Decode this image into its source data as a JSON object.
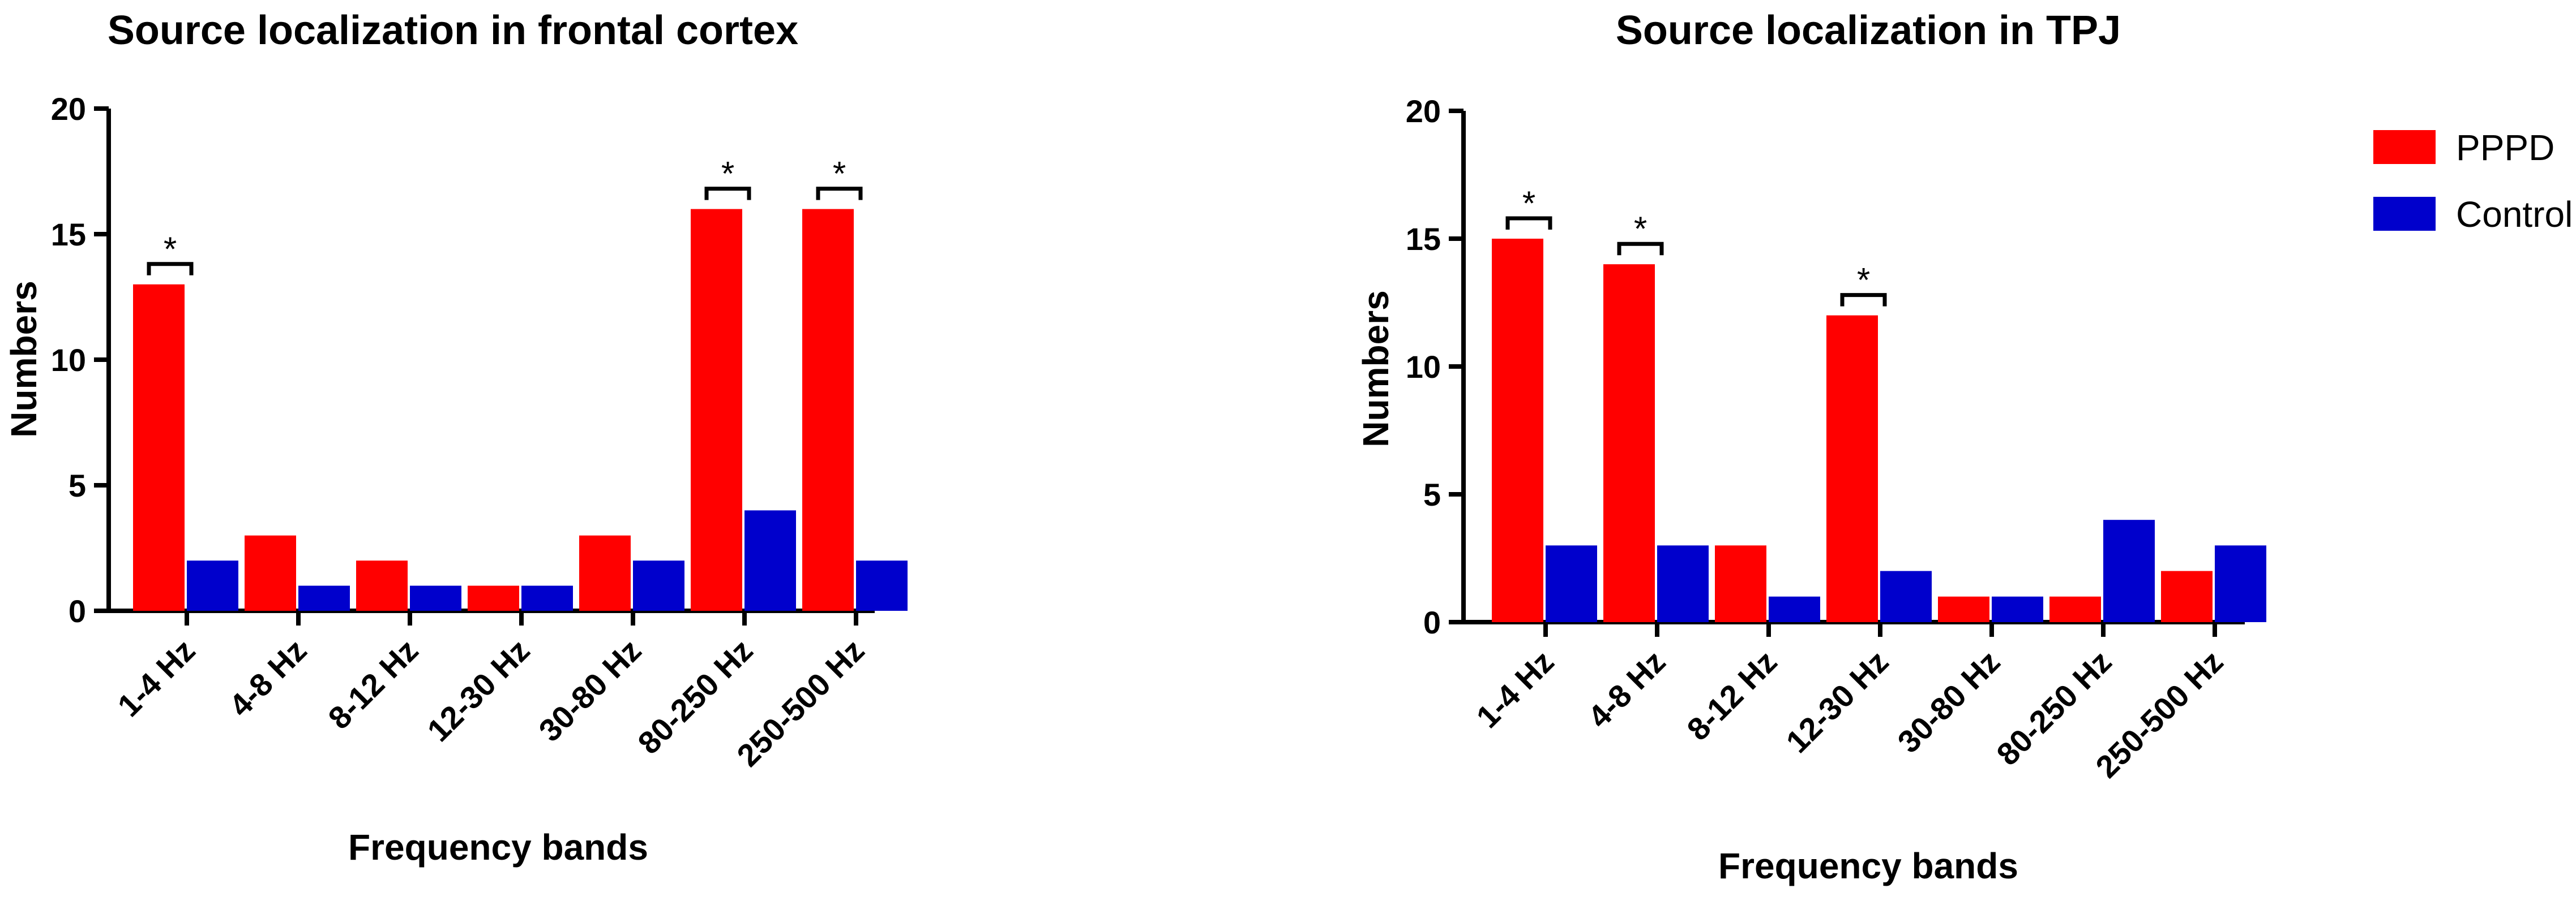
{
  "legend": {
    "items": [
      {
        "label": "PPPD",
        "color": "#ff0000"
      },
      {
        "label": "Control",
        "color": "#0000cc"
      }
    ]
  },
  "chart_data": [
    {
      "type": "bar",
      "title": "Source localization in frontal cortex",
      "xlabel": "Frequency bands",
      "ylabel": "Numbers",
      "ylim": [
        0,
        20
      ],
      "yticks": [
        0,
        5,
        10,
        15,
        20
      ],
      "categories": [
        "1-4 Hz",
        "4-8 Hz",
        "8-12 Hz",
        "12-30 Hz",
        "30-80 Hz",
        "80-250 Hz",
        "250-500 Hz"
      ],
      "series": [
        {
          "name": "PPPD",
          "color": "#ff0000",
          "values": [
            13,
            3,
            2,
            1,
            3,
            16,
            16
          ]
        },
        {
          "name": "Control",
          "color": "#0000cc",
          "values": [
            2,
            1,
            1,
            1,
            2,
            4,
            2
          ]
        }
      ],
      "significance": [
        {
          "category": "1-4 Hz",
          "label": "*"
        },
        {
          "category": "80-250 Hz",
          "label": "*"
        },
        {
          "category": "250-500 Hz",
          "label": "*"
        }
      ],
      "grid": false
    },
    {
      "type": "bar",
      "title": "Source localization in TPJ",
      "xlabel": "Frequency bands",
      "ylabel": "Numbers",
      "ylim": [
        0,
        20
      ],
      "yticks": [
        0,
        5,
        10,
        15,
        20
      ],
      "categories": [
        "1-4 Hz",
        "4-8 Hz",
        "8-12 Hz",
        "12-30 Hz",
        "30-80 Hz",
        "80-250 Hz",
        "250-500 Hz"
      ],
      "series": [
        {
          "name": "PPPD",
          "color": "#ff0000",
          "values": [
            15,
            14,
            3,
            12,
            1,
            1,
            2
          ]
        },
        {
          "name": "Control",
          "color": "#0000cc",
          "values": [
            3,
            3,
            1,
            2,
            1,
            4,
            3
          ]
        }
      ],
      "significance": [
        {
          "category": "1-4 Hz",
          "label": "*"
        },
        {
          "category": "4-8 Hz",
          "label": "*"
        },
        {
          "category": "12-30 Hz",
          "label": "*"
        }
      ],
      "grid": false
    }
  ]
}
